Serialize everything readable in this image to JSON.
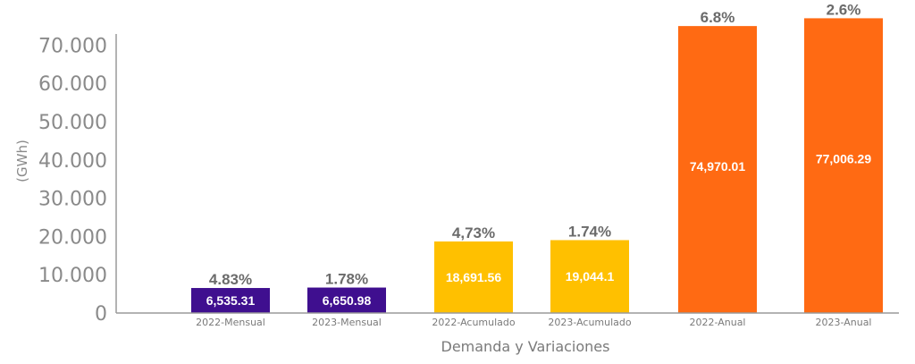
{
  "chart_data": {
    "type": "bar",
    "title": "",
    "xlabel": "Demanda y Variaciones",
    "ylabel": "(GWh)",
    "ylim": [
      0,
      75000
    ],
    "yticks": [
      {
        "value": 0,
        "label": "0"
      },
      {
        "value": 10000,
        "label": "10.000"
      },
      {
        "value": 20000,
        "label": "20.000"
      },
      {
        "value": 30000,
        "label": "30.000"
      },
      {
        "value": 40000,
        "label": "40.000"
      },
      {
        "value": 50000,
        "label": "50.000"
      },
      {
        "value": 60000,
        "label": "60.000"
      },
      {
        "value": 70000,
        "label": "70.000"
      }
    ],
    "grid": false,
    "categories": [
      "2022-Mensual",
      "2023-Mensual",
      "2022-Acumulado",
      "2023-Acumulado",
      "2022-Anual",
      "2023-Anual"
    ],
    "values": [
      6535.31,
      6650.98,
      18691.56,
      19044.1,
      74970.01,
      77006.29
    ],
    "value_labels": [
      "6,535.31",
      "6,650.98",
      "18,691.56",
      "19,044.1",
      "74,970.01",
      "77,006.29"
    ],
    "variation_labels": [
      "4.83%",
      "1.78%",
      "4,73%",
      "1.74%",
      "6.8%",
      "2.6%"
    ],
    "colors": [
      "#3f0f8f",
      "#3f0f8f",
      "#ffc000",
      "#ffc000",
      "#ff6a13",
      "#ff6a13"
    ]
  }
}
